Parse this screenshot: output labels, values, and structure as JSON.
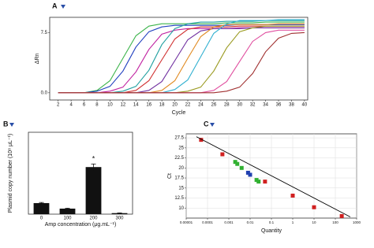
{
  "chart_data": [
    {
      "type": "line",
      "panel_label": "A",
      "xlabel": "Cycle",
      "ylabel": "ΔRn",
      "x": [
        2,
        4,
        6,
        8,
        10,
        12,
        14,
        16,
        18,
        20,
        22,
        24,
        26,
        28,
        30,
        32,
        34,
        36,
        38,
        40
      ],
      "xlim": [
        0.7,
        40.5
      ],
      "ylim": [
        -0.9,
        9.4
      ],
      "xticks": [
        2,
        4,
        6,
        8,
        10,
        12,
        14,
        16,
        18,
        20,
        22,
        24,
        26,
        28,
        30,
        32,
        34,
        36,
        38,
        40
      ],
      "yticks": [
        {
          "value": 0,
          "label": "0.0"
        },
        7.5
      ],
      "series": [
        {
          "color": "#3cb44b",
          "values": [
            0,
            0,
            0,
            0.3,
            1.5,
            4.3,
            7.1,
            8.3,
            8.6,
            8.6,
            8.6,
            8.6,
            8.6,
            8.7,
            8.7,
            8.7,
            8.8,
            8.8,
            8.8,
            8.8
          ]
        },
        {
          "color": "#1f3fbf",
          "values": [
            0,
            0,
            0,
            0.2,
            0.8,
            2.7,
            5.7,
            7.6,
            8.2,
            8.4,
            8.4,
            8.4,
            8.4,
            8.4,
            8.5,
            8.5,
            8.5,
            8.5,
            8.5,
            8.5
          ]
        },
        {
          "color": "#c020a0",
          "values": [
            0,
            0,
            0,
            0,
            0.2,
            0.7,
            2.6,
            5.4,
            7.3,
            7.8,
            8.0,
            8.0,
            8.0,
            8.0,
            8.1,
            8.1,
            8.1,
            8.1,
            8.1,
            8.1
          ]
        },
        {
          "color": "#20a0a0",
          "values": [
            0,
            0,
            0,
            0,
            0,
            0.2,
            0.8,
            2.8,
            6.0,
            8.0,
            8.6,
            8.8,
            8.8,
            8.9,
            8.9,
            8.9,
            9.0,
            9.0,
            9.0,
            9.0
          ]
        },
        {
          "color": "#d03030",
          "values": [
            0,
            0,
            0,
            0,
            0,
            0,
            0.3,
            1.5,
            4.1,
            6.7,
            7.9,
            8.2,
            8.2,
            8.2,
            8.3,
            8.3,
            8.3,
            8.3,
            8.3,
            8.3
          ]
        },
        {
          "color": "#7030a0",
          "values": [
            0,
            0,
            0,
            0,
            0,
            0,
            0,
            0.3,
            1.4,
            4.0,
            6.6,
            7.7,
            8.0,
            8.0,
            8.0,
            8.1,
            8.1,
            8.1,
            8.1,
            8.1
          ]
        },
        {
          "color": "#e08a20",
          "values": [
            0,
            0,
            0,
            0,
            0,
            0,
            0,
            0,
            0.3,
            1.5,
            4.3,
            7.0,
            8.2,
            8.5,
            8.5,
            8.5,
            8.5,
            8.6,
            8.6,
            8.6
          ]
        },
        {
          "color": "#30b0d0",
          "values": [
            0,
            0,
            0,
            0,
            0,
            0,
            0,
            0,
            0,
            0.4,
            1.6,
            4.5,
            7.4,
            8.6,
            9.0,
            9.0,
            9.0,
            9.1,
            9.1,
            9.1
          ]
        },
        {
          "color": "#9a9a20",
          "values": [
            0,
            0,
            0,
            0,
            0,
            0,
            0,
            0,
            0,
            0,
            0.2,
            0.7,
            2.7,
            5.6,
            7.6,
            8.1,
            8.3,
            8.3,
            8.3,
            8.3
          ]
        },
        {
          "color": "#e050a0",
          "values": [
            0,
            0,
            0,
            0,
            0,
            0,
            0,
            0,
            0,
            0,
            0,
            0,
            0.3,
            1.4,
            3.9,
            6.4,
            7.5,
            7.8,
            7.8,
            7.8
          ]
        },
        {
          "color": "#a03030",
          "values": [
            0,
            0,
            0,
            0,
            0,
            0,
            0,
            0,
            0,
            0,
            0,
            0,
            0,
            0.2,
            0.7,
            2.4,
            5.1,
            6.8,
            7.4,
            7.5
          ]
        }
      ]
    },
    {
      "type": "bar",
      "panel_label": "B",
      "xlabel": "Amp concentration (μg.mL⁻¹)",
      "ylabel": "Plasmid copy number (10⁸ μL⁻¹)",
      "categories": [
        "0",
        "100",
        "200",
        "300"
      ],
      "values": [
        5.4,
        2.7,
        23,
        0.5
      ],
      "errors": [
        0.3,
        0.2,
        1.5,
        0.1
      ],
      "color": "#111111",
      "ylim": [
        0,
        40
      ],
      "annotation": {
        "text": "*",
        "category": "200"
      }
    },
    {
      "type": "scatter",
      "panel_label": "C",
      "xlabel": "Quantity",
      "ylabel": "Ct",
      "xlog": true,
      "xlim": [
        1e-05,
        1000
      ],
      "ylim": [
        7.5,
        28.5
      ],
      "xticks": [
        1e-05,
        0.0001,
        0.001,
        0.01,
        0.1,
        1,
        10,
        100,
        1000
      ],
      "yticks": [
        10,
        12.5,
        15,
        17.5,
        20,
        22.5,
        25,
        27.5
      ],
      "grid": true,
      "series": [
        {
          "color": "#d02020",
          "x": [
            5e-05,
            0.0005,
            0.05,
            1,
            10,
            200
          ],
          "values": [
            27.0,
            23.4,
            16.6,
            13.1,
            10.2,
            8.0
          ]
        },
        {
          "color": "#30b030",
          "x": [
            0.002,
            0.0025,
            0.004,
            0.02,
            0.025
          ],
          "values": [
            21.5,
            21.0,
            20.0,
            17.0,
            16.6
          ]
        },
        {
          "color": "#2040b0",
          "x": [
            0.008,
            0.01
          ],
          "values": [
            18.8,
            18.3
          ]
        },
        {
          "color": "#000000",
          "mode": "line",
          "x": [
            3e-05,
            500
          ],
          "values": [
            27.8,
            7.8
          ]
        }
      ]
    }
  ]
}
